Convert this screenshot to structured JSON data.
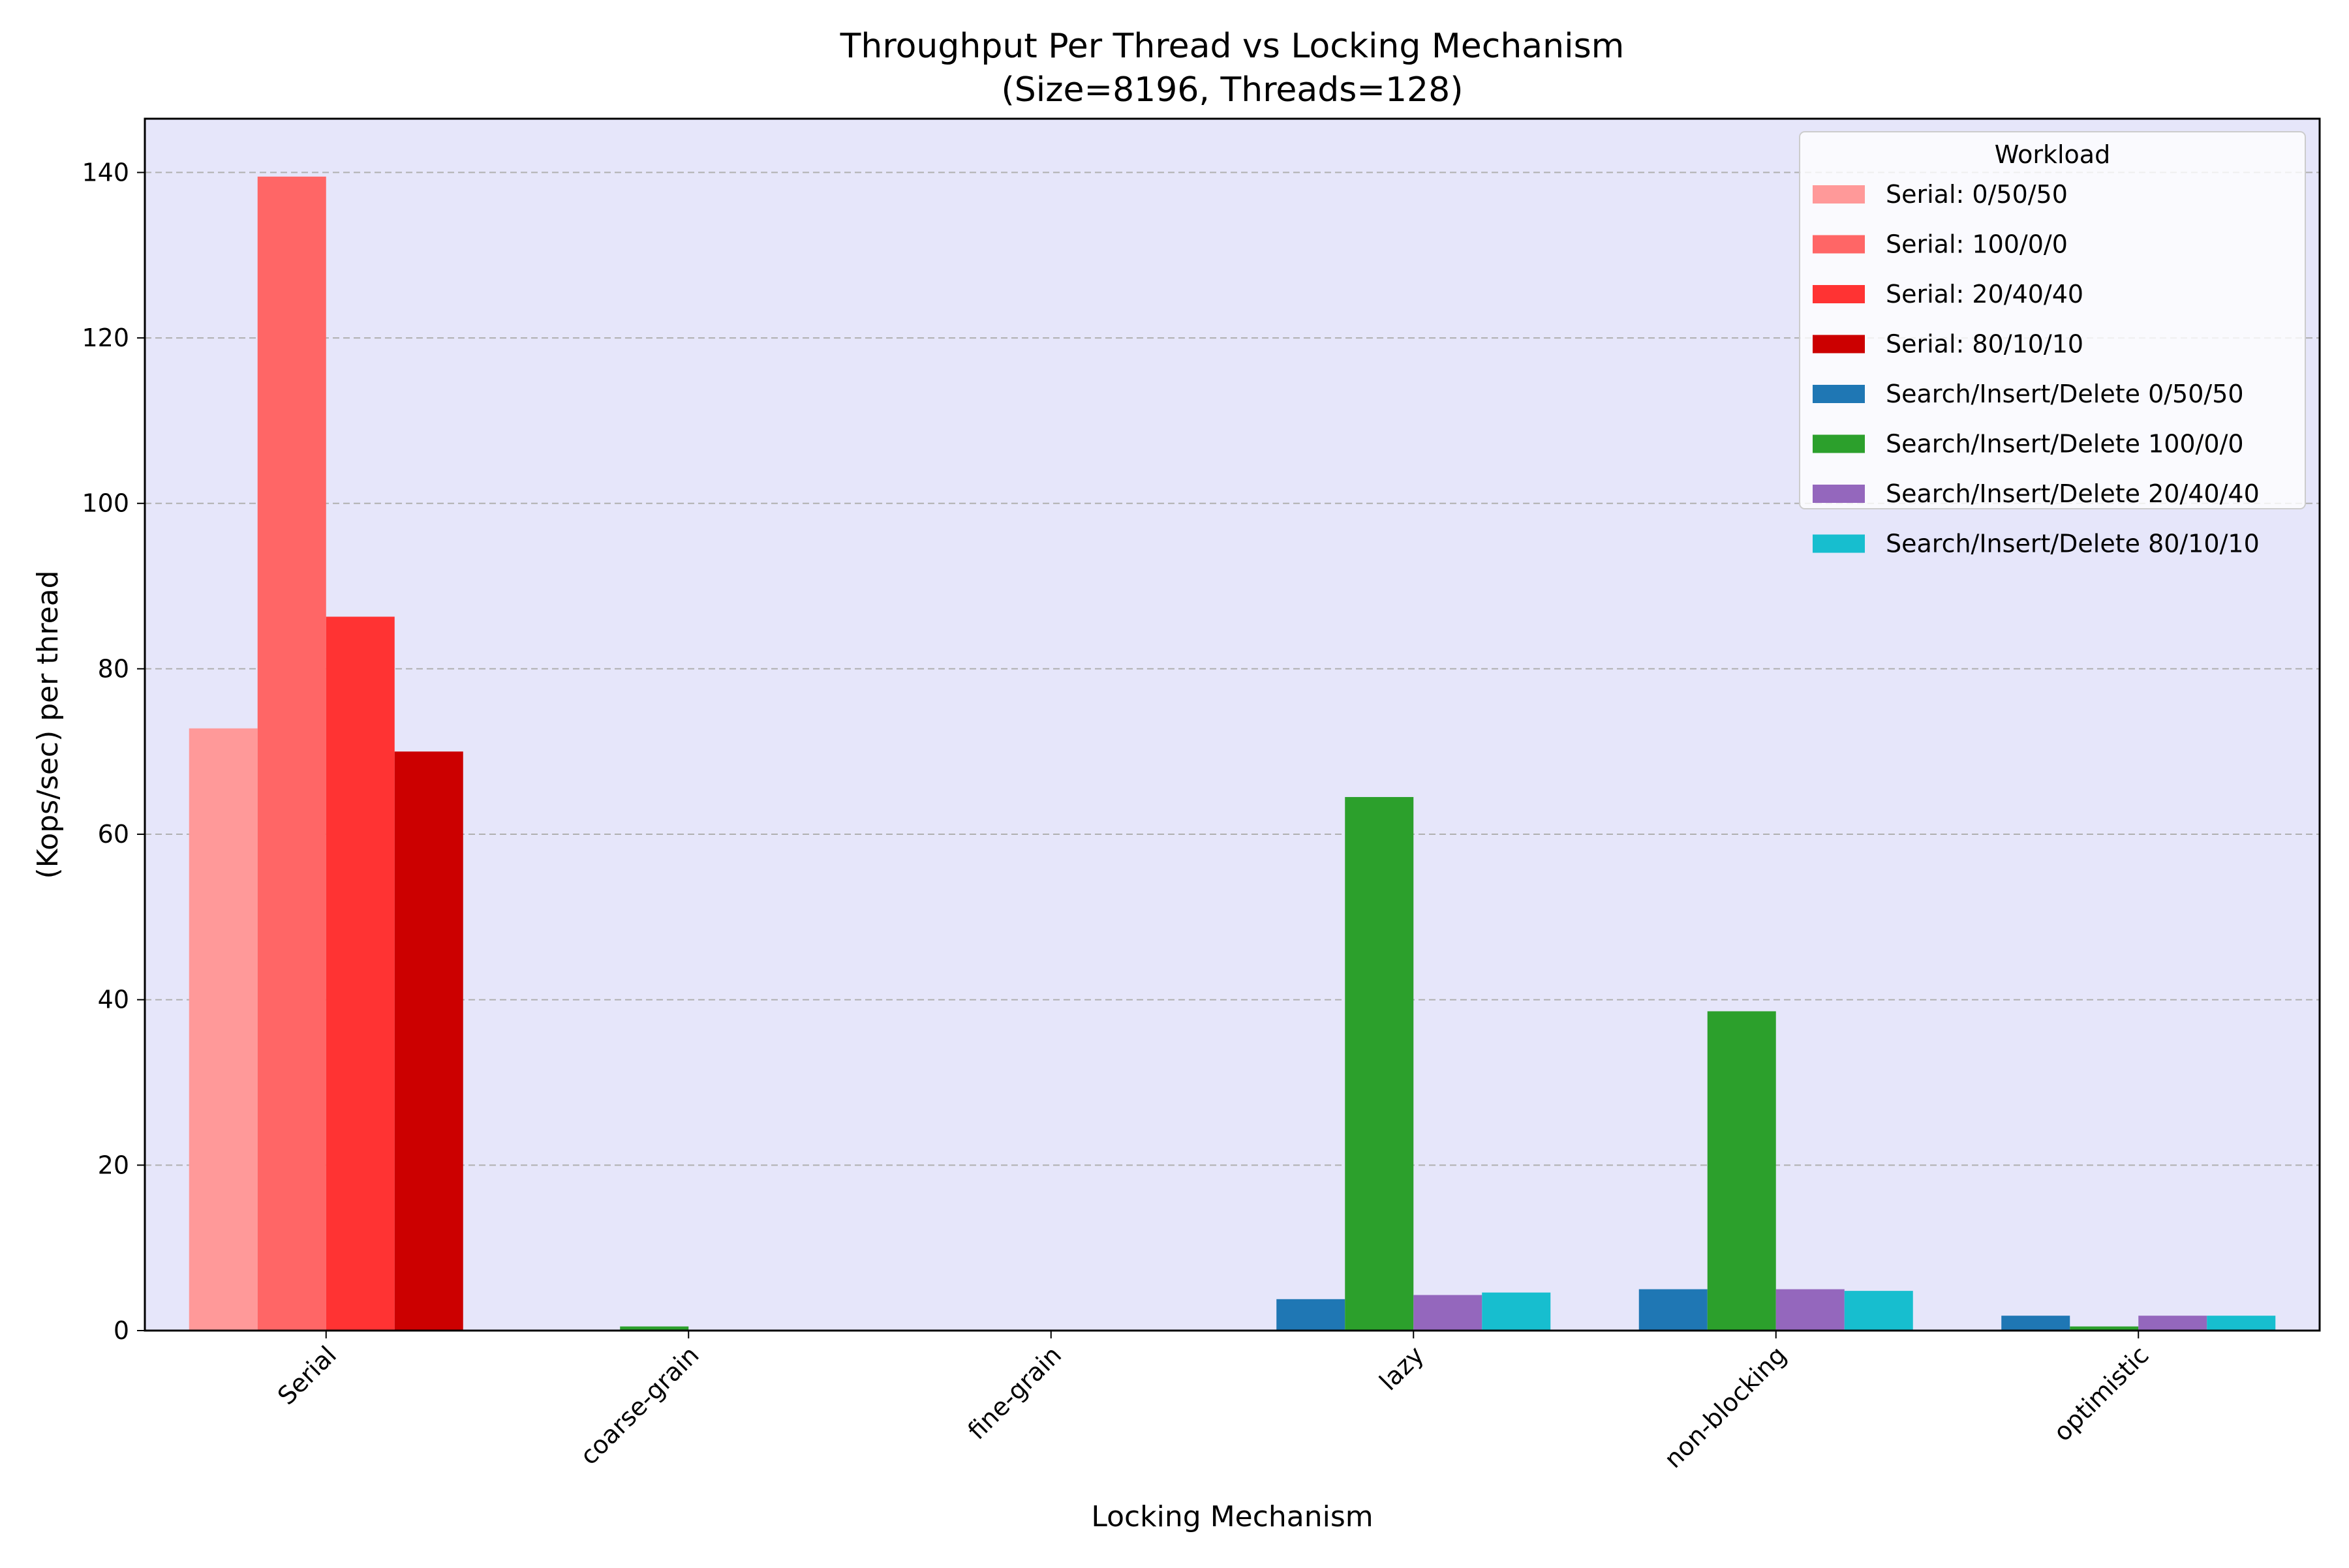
{
  "chart_data": {
    "type": "bar",
    "title": "Throughput Per Thread vs Locking Mechanism",
    "subtitle": "(Size=8196, Threads=128)",
    "xlabel": "Locking Mechanism",
    "ylabel": "(Kops/sec) per thread",
    "categories": [
      "Serial",
      "coarse-grain",
      "fine-grain",
      "lazy",
      "non-blocking",
      "optimistic"
    ],
    "ylim": [
      0,
      146.5
    ],
    "yticks": [
      0,
      20,
      40,
      60,
      80,
      100,
      120,
      140
    ],
    "grid": "horizontal dashed",
    "legend_title": "Workload",
    "legend_position": "top-right",
    "series": [
      {
        "name": "Serial: 0/50/50",
        "color": "#ff9999",
        "values": [
          72.8,
          0,
          0,
          0,
          0,
          0
        ]
      },
      {
        "name": "Serial: 100/0/0",
        "color": "#ff6666",
        "values": [
          139.5,
          0,
          0,
          0,
          0,
          0
        ]
      },
      {
        "name": "Serial: 20/40/40",
        "color": "#ff3333",
        "values": [
          86.3,
          0,
          0,
          0,
          0,
          0
        ]
      },
      {
        "name": "Serial: 80/10/10",
        "color": "#cc0000",
        "values": [
          70.0,
          0,
          0,
          0,
          0,
          0
        ]
      },
      {
        "name": "Search/Insert/Delete 0/50/50",
        "color": "#1f77b4",
        "values": [
          0,
          0.1,
          0.02,
          3.8,
          5.0,
          1.8
        ]
      },
      {
        "name": "Search/Insert/Delete 100/0/0",
        "color": "#2ca02c",
        "values": [
          0,
          0.5,
          0.02,
          64.5,
          38.6,
          0.5
        ]
      },
      {
        "name": "Search/Insert/Delete 20/40/40",
        "color": "#9467bd",
        "values": [
          0,
          0.1,
          0.02,
          4.3,
          5.0,
          1.8
        ]
      },
      {
        "name": "Search/Insert/Delete 80/10/10",
        "color": "#17becf",
        "values": [
          0,
          0.1,
          0.02,
          4.6,
          4.8,
          1.8
        ]
      }
    ],
    "colors": {
      "plot_background": "#e6e6fa",
      "grid": "#b0b0b0",
      "legend_background": "#ffffff"
    }
  }
}
